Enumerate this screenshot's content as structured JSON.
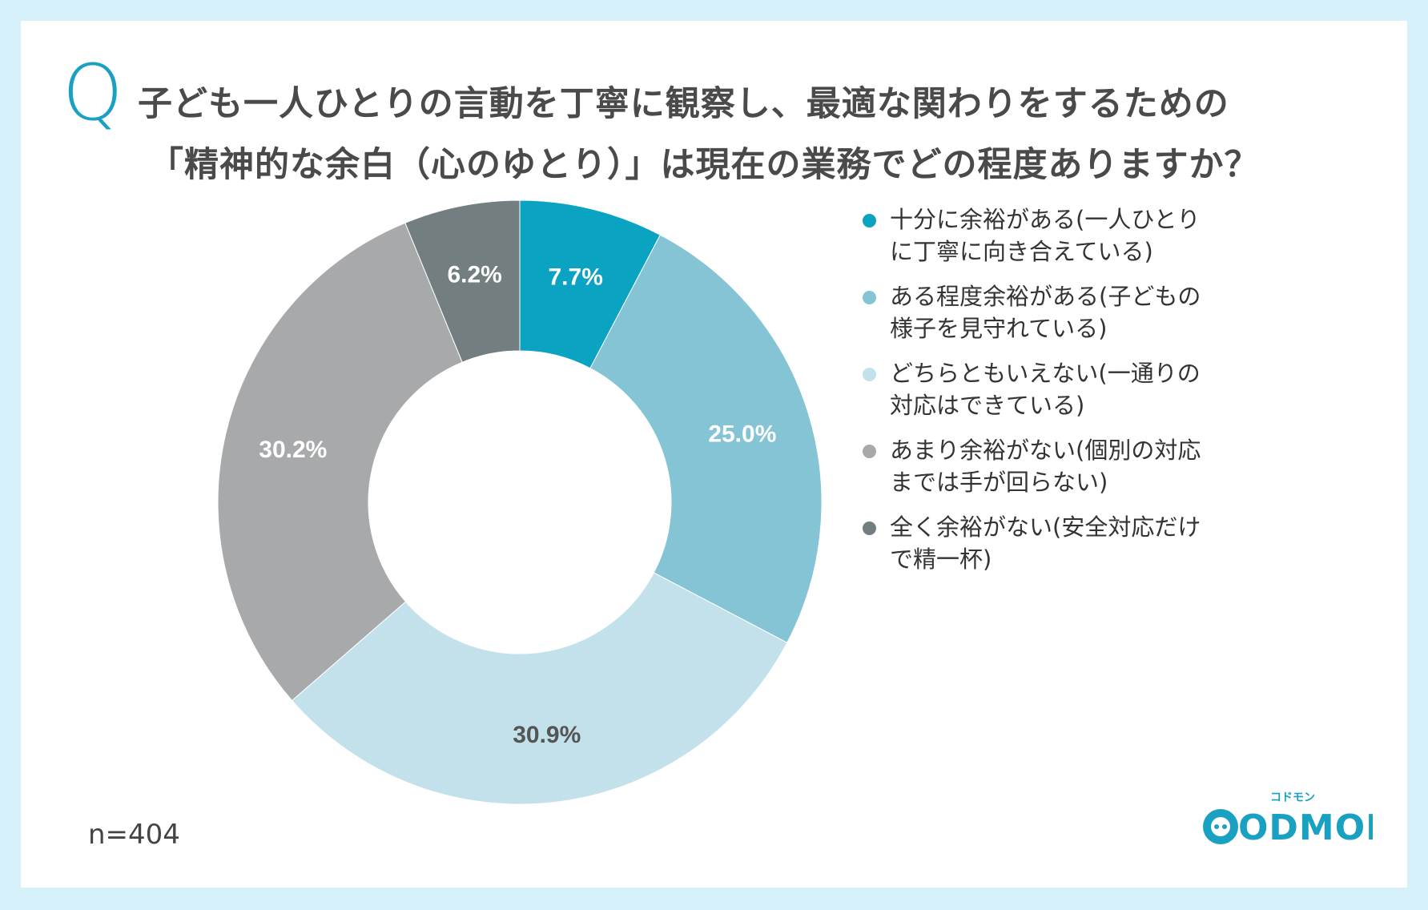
{
  "question": {
    "mark": "Q",
    "line1": "子ども一人ひとりの言動を丁寧に観察し、最適な関わりをするための",
    "line2": "「精神的な余白（心のゆとり）」は現在の業務でどの程度ありますか？"
  },
  "chart_data": {
    "type": "pie",
    "donut": true,
    "categories": [
      "十分に余裕がある(一人ひとりに丁寧に向き合えている)",
      "ある程度余裕がある(子どもの様子を見守れている)",
      "どちらともいえない(一通りの対応はできている)",
      "あまり余裕がない(個別の対応までは手が回らない)",
      "全く余裕がない(安全対応だけで精一杯)"
    ],
    "values": [
      7.7,
      25.0,
      30.9,
      30.2,
      6.2
    ],
    "value_labels": [
      "7.7%",
      "25.0%",
      "30.9%",
      "30.2%",
      "6.2%"
    ],
    "colors": [
      "#0aa3c2",
      "#84c4d4",
      "#c3e1ea",
      "#a8a9ab",
      "#727e80"
    ],
    "label_colors": [
      "#ffffff",
      "#ffffff",
      "#555555",
      "#ffffff",
      "#ffffff"
    ],
    "legend_placement": "right",
    "legend": [
      {
        "line1": "十分に余裕がある(一人ひとり",
        "line2": "に丁寧に向き合えている)"
      },
      {
        "line1": "ある程度余裕がある(子どもの",
        "line2": "様子を見守れている)"
      },
      {
        "line1": "どちらともいえない(一通りの",
        "line2": "対応はできている)"
      },
      {
        "line1": "あまり余裕がない(個別の対応",
        "line2": "までは手が回らない)"
      },
      {
        "line1": "全く余裕がない(安全対応だけ",
        "line2": "で精一杯)"
      }
    ]
  },
  "sample_size": "n=404",
  "logo": {
    "text": "CODMON",
    "tagline": "コドモン"
  }
}
